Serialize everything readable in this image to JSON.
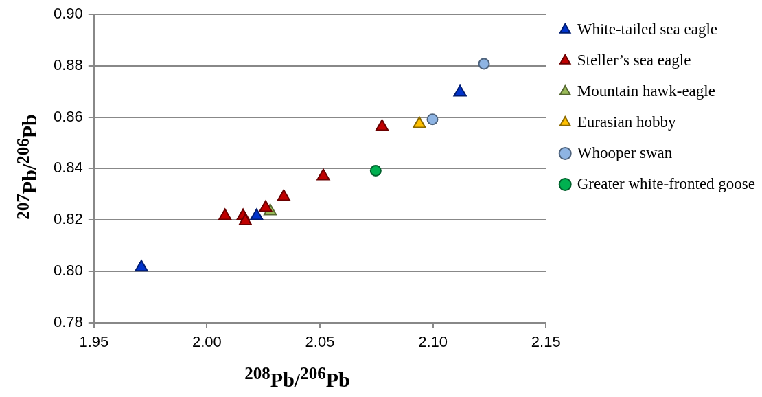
{
  "chart_data": {
    "type": "scatter",
    "xlabel": "$^{208}$Pb/$^{206}$Pb",
    "ylabel": "$^{207}$Pb/$^{206}$Pb",
    "xlim": [
      1.95,
      2.15
    ],
    "xticks": [
      {
        "value": 1.95,
        "label": "1.95"
      },
      {
        "value": 2.0,
        "label": "2.00"
      },
      {
        "value": 2.05,
        "label": "2.05"
      },
      {
        "value": 2.1,
        "label": "2.10"
      },
      {
        "value": 2.15,
        "label": "2.15"
      }
    ],
    "ylim": [
      0.78,
      0.9
    ],
    "yticks": [
      {
        "value": 0.78,
        "label": "0.78"
      },
      {
        "value": 0.8,
        "label": "0.80"
      },
      {
        "value": 0.82,
        "label": "0.82"
      },
      {
        "value": 0.84,
        "label": "0.84"
      },
      {
        "value": 0.86,
        "label": "0.86"
      },
      {
        "value": 0.88,
        "label": "0.88"
      },
      {
        "value": 0.9,
        "label": "0.90"
      }
    ],
    "grid": "y",
    "legend": "right",
    "marker": "triangle",
    "series": [
      {
        "name": "White-tailed sea eagle",
        "color": "#0033cc",
        "x": [
          1.971,
          2.022,
          2.112
        ],
        "values": [
          0.8015,
          0.8215,
          0.8697
        ]
      },
      {
        "name": "Steller’s sea eagle",
        "color": "#c00000",
        "x": [
          2.008,
          2.016,
          2.017,
          2.026,
          2.034,
          2.0515,
          2.0775
        ],
        "values": [
          0.8215,
          0.8215,
          0.8195,
          0.8247,
          0.829,
          0.837,
          0.8563
        ]
      },
      {
        "name": "Mountain hawk-eagle",
        "color": "#9bbb59",
        "x": [
          2.028
        ],
        "values": [
          0.8234
        ]
      },
      {
        "name": "Eurasian hobby",
        "color": "#ffc000",
        "x": [
          2.094
        ],
        "values": [
          0.8574
        ]
      },
      {
        "name": "Whooper swan",
        "color": "#8eb4e3",
        "marker": "circle",
        "x": [
          2.0998,
          2.1226
        ],
        "values": [
          0.8592,
          0.8808
        ]
      },
      {
        "name": "Greater white-fronted goose",
        "color": "#00b050",
        "marker": "circle",
        "x": [
          2.0747
        ],
        "values": [
          0.8392
        ]
      }
    ]
  }
}
